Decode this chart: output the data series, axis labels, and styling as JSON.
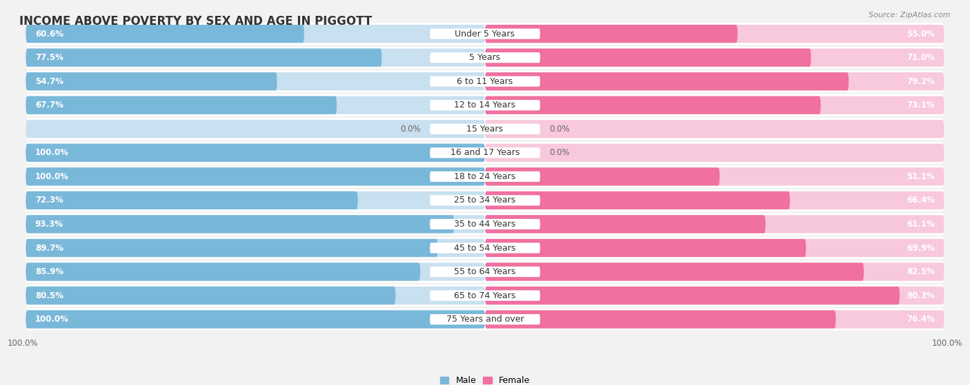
{
  "title": "INCOME ABOVE POVERTY BY SEX AND AGE IN PIGGOTT",
  "source": "Source: ZipAtlas.com",
  "categories": [
    "Under 5 Years",
    "5 Years",
    "6 to 11 Years",
    "12 to 14 Years",
    "15 Years",
    "16 and 17 Years",
    "18 to 24 Years",
    "25 to 34 Years",
    "35 to 44 Years",
    "45 to 54 Years",
    "55 to 64 Years",
    "65 to 74 Years",
    "75 Years and over"
  ],
  "male": [
    60.6,
    77.5,
    54.7,
    67.7,
    0.0,
    100.0,
    100.0,
    72.3,
    93.3,
    89.7,
    85.9,
    80.5,
    100.0
  ],
  "female": [
    55.0,
    71.0,
    79.2,
    73.1,
    0.0,
    0.0,
    51.1,
    66.4,
    61.1,
    69.9,
    82.5,
    90.3,
    76.4
  ],
  "male_color": "#7ab8d9",
  "female_color": "#f070a0",
  "male_light_color": "#c8e0f0",
  "female_light_color": "#f8c8dc",
  "bg_color": "#f2f2f2",
  "row_bg_color": "#ffffff",
  "title_fontsize": 12,
  "label_fontsize": 8.5,
  "cat_fontsize": 9,
  "source_fontsize": 8,
  "bottom_label": "100.0%",
  "xlim": 100
}
